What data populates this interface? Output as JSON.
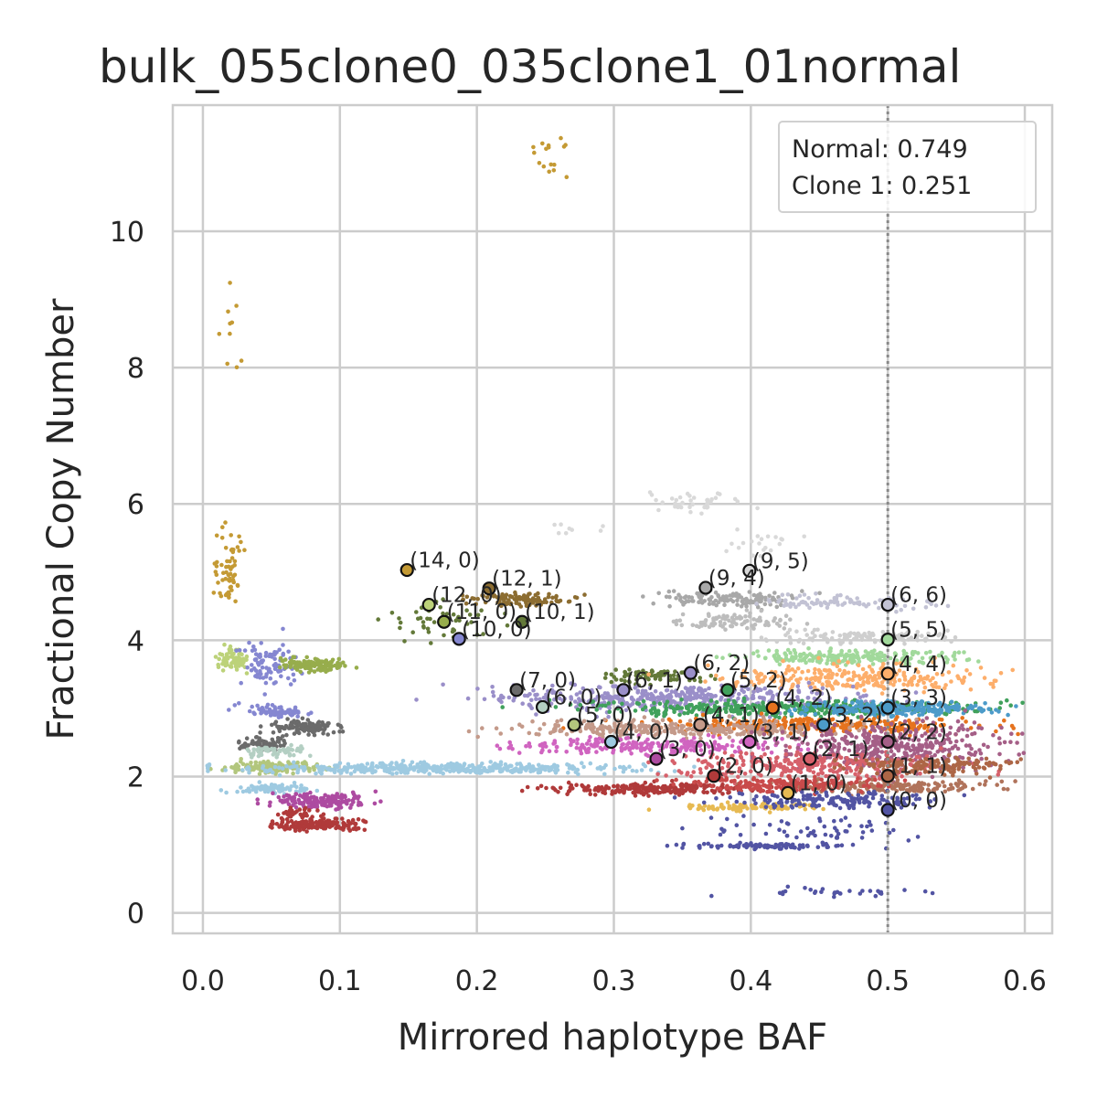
{
  "chart_data": {
    "type": "scatter",
    "title": "bulk_055clone0_035clone1_01normal",
    "xlabel": "Mirrored haplotype BAF",
    "ylabel": "Fractional Copy Number",
    "xlim": [
      -0.022,
      0.62
    ],
    "ylim": [
      -0.3,
      11.85
    ],
    "xticks": [
      0.0,
      0.1,
      0.2,
      0.3,
      0.4,
      0.5,
      0.6
    ],
    "xtick_labels": [
      "0.0",
      "0.1",
      "0.2",
      "0.3",
      "0.4",
      "0.5",
      "0.6"
    ],
    "yticks": [
      0,
      2,
      4,
      6,
      8,
      10
    ],
    "ytick_labels": [
      "0",
      "2",
      "4",
      "6",
      "8",
      "10"
    ],
    "grid": true,
    "reference_line": {
      "x": 0.5,
      "style": "dotted",
      "color": "#888888"
    },
    "annotation_box": {
      "placement": "top-right",
      "lines": [
        "Normal: 0.749",
        "Clone 1: 0.251"
      ]
    },
    "clusters": [
      {
        "x": 0.018,
        "y": 5.05,
        "sx": 0.006,
        "sy": 0.32,
        "n": 60,
        "color": "#c49a34"
      },
      {
        "x": 0.021,
        "y": 3.72,
        "sx": 0.006,
        "sy": 0.08,
        "n": 70,
        "color": "#bcd279"
      },
      {
        "x": 0.05,
        "y": 3.65,
        "sx": 0.012,
        "sy": 0.17,
        "n": 90,
        "color": "#8587d1"
      },
      {
        "x": 0.08,
        "y": 3.65,
        "sx": 0.012,
        "sy": 0.05,
        "n": 120,
        "color": "#97ad4c"
      },
      {
        "x": 0.05,
        "y": 2.97,
        "sx": 0.012,
        "sy": 0.05,
        "n": 70,
        "color": "#8587d1"
      },
      {
        "x": 0.075,
        "y": 2.72,
        "sx": 0.013,
        "sy": 0.05,
        "n": 120,
        "color": "#6b6b6b"
      },
      {
        "x": 0.045,
        "y": 2.47,
        "sx": 0.012,
        "sy": 0.05,
        "n": 70,
        "color": "#6b6b6b"
      },
      {
        "x": 0.055,
        "y": 2.37,
        "sx": 0.012,
        "sy": 0.04,
        "n": 60,
        "color": "#b4cfc3"
      },
      {
        "x": 0.05,
        "y": 2.14,
        "sx": 0.018,
        "sy": 0.04,
        "n": 140,
        "color": "#b2c67d"
      },
      {
        "x": 0.17,
        "y": 2.12,
        "sx": 0.07,
        "sy": 0.04,
        "n": 420,
        "color": "#9ecae1"
      },
      {
        "x": 0.05,
        "y": 1.82,
        "sx": 0.013,
        "sy": 0.04,
        "n": 90,
        "color": "#9ecae1"
      },
      {
        "x": 0.085,
        "y": 1.65,
        "sx": 0.017,
        "sy": 0.05,
        "n": 160,
        "color": "#ad4ba1"
      },
      {
        "x": 0.07,
        "y": 1.45,
        "sx": 0.008,
        "sy": 0.04,
        "n": 40,
        "color": "#b03a3a"
      },
      {
        "x": 0.085,
        "y": 1.3,
        "sx": 0.017,
        "sy": 0.04,
        "n": 160,
        "color": "#b03a3a"
      },
      {
        "x": 0.17,
        "y": 4.25,
        "sx": 0.02,
        "sy": 0.15,
        "n": 50,
        "color": "#637939"
      },
      {
        "x": 0.23,
        "y": 4.6,
        "sx": 0.02,
        "sy": 0.05,
        "n": 110,
        "color": "#8c6d31"
      },
      {
        "x": 0.255,
        "y": 11.1,
        "sx": 0.007,
        "sy": 0.18,
        "n": 16,
        "color": "#c49a34"
      },
      {
        "x": 0.02,
        "y": 8.7,
        "sx": 0.004,
        "sy": 0.45,
        "n": 10,
        "color": "#c49a34"
      },
      {
        "x": 0.36,
        "y": 6.05,
        "sx": 0.02,
        "sy": 0.1,
        "n": 40,
        "color": "#d9d9d9"
      },
      {
        "x": 0.27,
        "y": 5.6,
        "sx": 0.01,
        "sy": 0.05,
        "n": 8,
        "color": "#d9d9d9"
      },
      {
        "x": 0.41,
        "y": 5.45,
        "sx": 0.015,
        "sy": 0.12,
        "n": 20,
        "color": "#d9d9d9"
      },
      {
        "x": 0.39,
        "y": 4.6,
        "sx": 0.025,
        "sy": 0.06,
        "n": 120,
        "color": "#a8a8a8"
      },
      {
        "x": 0.39,
        "y": 4.28,
        "sx": 0.025,
        "sy": 0.06,
        "n": 90,
        "color": "#bdbdbd"
      },
      {
        "x": 0.47,
        "y": 4.55,
        "sx": 0.03,
        "sy": 0.05,
        "n": 90,
        "color": "#c2c2d4"
      },
      {
        "x": 0.48,
        "y": 4.05,
        "sx": 0.035,
        "sy": 0.05,
        "n": 120,
        "color": "#cfcfcf"
      },
      {
        "x": 0.33,
        "y": 3.48,
        "sx": 0.02,
        "sy": 0.05,
        "n": 80,
        "color": "#637939"
      },
      {
        "x": 0.47,
        "y": 3.75,
        "sx": 0.04,
        "sy": 0.05,
        "n": 220,
        "color": "#a1d99b"
      },
      {
        "x": 0.47,
        "y": 3.45,
        "sx": 0.05,
        "sy": 0.1,
        "n": 260,
        "color": "#fdae6b"
      },
      {
        "x": 0.35,
        "y": 3.15,
        "sx": 0.07,
        "sy": 0.1,
        "n": 420,
        "color": "#9a8fc9"
      },
      {
        "x": 0.43,
        "y": 3.0,
        "sx": 0.07,
        "sy": 0.06,
        "n": 380,
        "color": "#41a15c"
      },
      {
        "x": 0.5,
        "y": 3.0,
        "sx": 0.035,
        "sy": 0.06,
        "n": 250,
        "color": "#4c9bc9"
      },
      {
        "x": 0.45,
        "y": 2.75,
        "sx": 0.06,
        "sy": 0.06,
        "n": 300,
        "color": "#e6731e"
      },
      {
        "x": 0.35,
        "y": 2.7,
        "sx": 0.06,
        "sy": 0.06,
        "n": 320,
        "color": "#c49a8a"
      },
      {
        "x": 0.33,
        "y": 2.45,
        "sx": 0.05,
        "sy": 0.06,
        "n": 220,
        "color": "#d064c0"
      },
      {
        "x": 0.5,
        "y": 2.45,
        "sx": 0.04,
        "sy": 0.18,
        "n": 420,
        "color": "#a55f87"
      },
      {
        "x": 0.44,
        "y": 2.15,
        "sx": 0.05,
        "sy": 0.1,
        "n": 280,
        "color": "#d6616b"
      },
      {
        "x": 0.53,
        "y": 2.15,
        "sx": 0.03,
        "sy": 0.06,
        "n": 160,
        "color": "#ad6646"
      },
      {
        "x": 0.5,
        "y": 1.85,
        "sx": 0.04,
        "sy": 0.05,
        "n": 200,
        "color": "#b0735b"
      },
      {
        "x": 0.33,
        "y": 1.82,
        "sx": 0.04,
        "sy": 0.04,
        "n": 240,
        "color": "#b03a3a"
      },
      {
        "x": 0.42,
        "y": 1.88,
        "sx": 0.035,
        "sy": 0.05,
        "n": 180,
        "color": "#c94a4a"
      },
      {
        "x": 0.4,
        "y": 1.55,
        "sx": 0.025,
        "sy": 0.03,
        "n": 90,
        "color": "#e7ba52"
      },
      {
        "x": 0.46,
        "y": 1.65,
        "sx": 0.04,
        "sy": 0.06,
        "n": 160,
        "color": "#5254a3"
      },
      {
        "x": 0.41,
        "y": 0.98,
        "sx": 0.03,
        "sy": 0.02,
        "n": 90,
        "color": "#5254a3"
      },
      {
        "x": 0.45,
        "y": 1.2,
        "sx": 0.04,
        "sy": 0.1,
        "n": 60,
        "color": "#5254a3"
      },
      {
        "x": 0.46,
        "y": 0.3,
        "sx": 0.04,
        "sy": 0.04,
        "n": 30,
        "color": "#5254a3"
      }
    ],
    "states": [
      {
        "label": "(14, 0)",
        "x": 0.149,
        "y": 5.03,
        "color": "#c49a34"
      },
      {
        "label": "(12, 1)",
        "x": 0.209,
        "y": 4.76,
        "color": "#8c6d31"
      },
      {
        "label": "(12, 0)",
        "x": 0.165,
        "y": 4.52,
        "color": "#bcd279"
      },
      {
        "label": "(11, 0)",
        "x": 0.176,
        "y": 4.27,
        "color": "#97ad4c"
      },
      {
        "label": "(10, 1)",
        "x": 0.233,
        "y": 4.27,
        "color": "#637939"
      },
      {
        "label": "(10, 0)",
        "x": 0.187,
        "y": 4.02,
        "color": "#8587d1"
      },
      {
        "label": "(9, 5)",
        "x": 0.399,
        "y": 5.02,
        "color": "#d9d9d9"
      },
      {
        "label": "(9, 4)",
        "x": 0.367,
        "y": 4.77,
        "color": "#a8a8a8"
      },
      {
        "label": "(6, 6)",
        "x": 0.5,
        "y": 4.52,
        "color": "#c2c2d4"
      },
      {
        "label": "(5, 5)",
        "x": 0.5,
        "y": 4.01,
        "color": "#a1d99b"
      },
      {
        "label": "(7, 0)",
        "x": 0.229,
        "y": 3.27,
        "color": "#6b6b6b"
      },
      {
        "label": "(6, 0)",
        "x": 0.248,
        "y": 3.02,
        "color": "#b4cfc3"
      },
      {
        "label": "(5, 0)",
        "x": 0.271,
        "y": 2.76,
        "color": "#b2c67d"
      },
      {
        "label": "(4, 0)",
        "x": 0.298,
        "y": 2.51,
        "color": "#9ecae1"
      },
      {
        "label": "(3, 0)",
        "x": 0.331,
        "y": 2.26,
        "color": "#ad4ba1"
      },
      {
        "label": "(2, 0)",
        "x": 0.373,
        "y": 2.01,
        "color": "#b03a3a"
      },
      {
        "label": "(1, 0)",
        "x": 0.427,
        "y": 1.76,
        "color": "#e7ba52"
      },
      {
        "label": "(6, 2)",
        "x": 0.356,
        "y": 3.52,
        "color": "#9a8fc9"
      },
      {
        "label": "(6, 1)",
        "x": 0.307,
        "y": 3.27,
        "color": "#9a8fc9"
      },
      {
        "label": "(5, 2)",
        "x": 0.383,
        "y": 3.27,
        "color": "#41a15c"
      },
      {
        "label": "(4, 2)",
        "x": 0.416,
        "y": 3.01,
        "color": "#e6731e"
      },
      {
        "label": "(4, 1)",
        "x": 0.363,
        "y": 2.76,
        "color": "#c49a8a"
      },
      {
        "label": "(3, 2)",
        "x": 0.453,
        "y": 2.76,
        "color": "#4c9bc9"
      },
      {
        "label": "(3, 1)",
        "x": 0.399,
        "y": 2.51,
        "color": "#d064c0"
      },
      {
        "label": "(2, 1)",
        "x": 0.443,
        "y": 2.26,
        "color": "#d6616b"
      },
      {
        "label": "(4, 4)",
        "x": 0.5,
        "y": 3.51,
        "color": "#fdae6b"
      },
      {
        "label": "(3, 3)",
        "x": 0.5,
        "y": 3.01,
        "color": "#4c9bc9"
      },
      {
        "label": "(2, 2)",
        "x": 0.5,
        "y": 2.51,
        "color": "#a55f87"
      },
      {
        "label": "(1, 1)",
        "x": 0.5,
        "y": 2.01,
        "color": "#ad6646"
      },
      {
        "label": "(0, 0)",
        "x": 0.5,
        "y": 1.51,
        "color": "#5254a3"
      }
    ]
  }
}
